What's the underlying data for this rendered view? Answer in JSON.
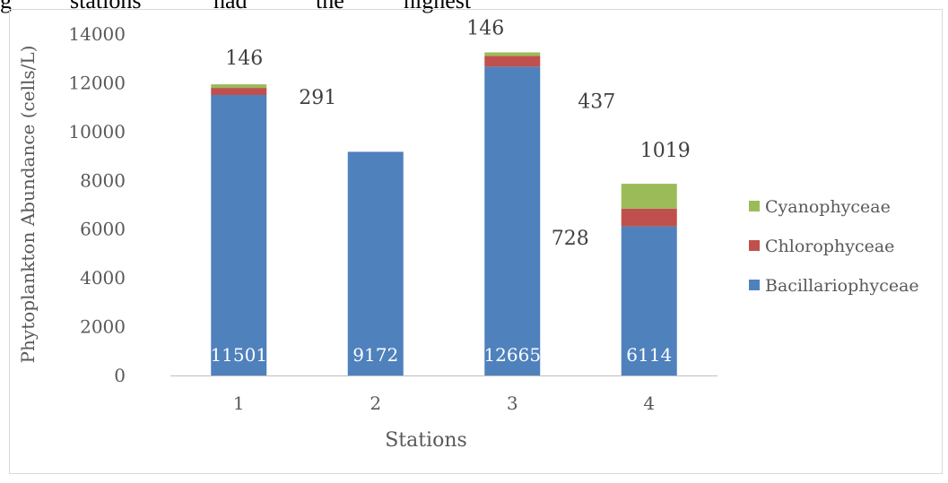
{
  "header_fragment": [
    "g",
    "stations",
    "had",
    "the",
    "highest"
  ],
  "chart_data": {
    "type": "bar",
    "stacked": true,
    "categories": [
      "1",
      "2",
      "3",
      "4"
    ],
    "series": [
      {
        "name": "Bacillariophyceae",
        "color": "#4F81BD",
        "values": [
          11501,
          9172,
          12665,
          6114
        ]
      },
      {
        "name": "Chlorophyceae",
        "color": "#C0504D",
        "values": [
          291,
          0,
          437,
          728
        ]
      },
      {
        "name": "Cyanophyceae",
        "color": "#9BBB59",
        "values": [
          146,
          0,
          146,
          1019
        ]
      }
    ],
    "data_labels": {
      "Bacillariophyceae": [
        "11501",
        "9172",
        "12665",
        "6114"
      ],
      "Chlorophyceae": [
        "291",
        "",
        "437",
        "728"
      ],
      "Cyanophyceae": [
        "146",
        "",
        "146",
        "1019"
      ]
    },
    "xlabel": "Stations",
    "ylabel": "Phytoplankton Abundance (cells/L)",
    "ylim": [
      0,
      14000
    ],
    "yticks": [
      "0",
      "2000",
      "4000",
      "6000",
      "8000",
      "10000",
      "12000",
      "14000"
    ],
    "grid": false,
    "legend_position": "right",
    "legend_order": [
      "Cyanophyceae",
      "Chlorophyceae",
      "Bacillariophyceae"
    ]
  }
}
